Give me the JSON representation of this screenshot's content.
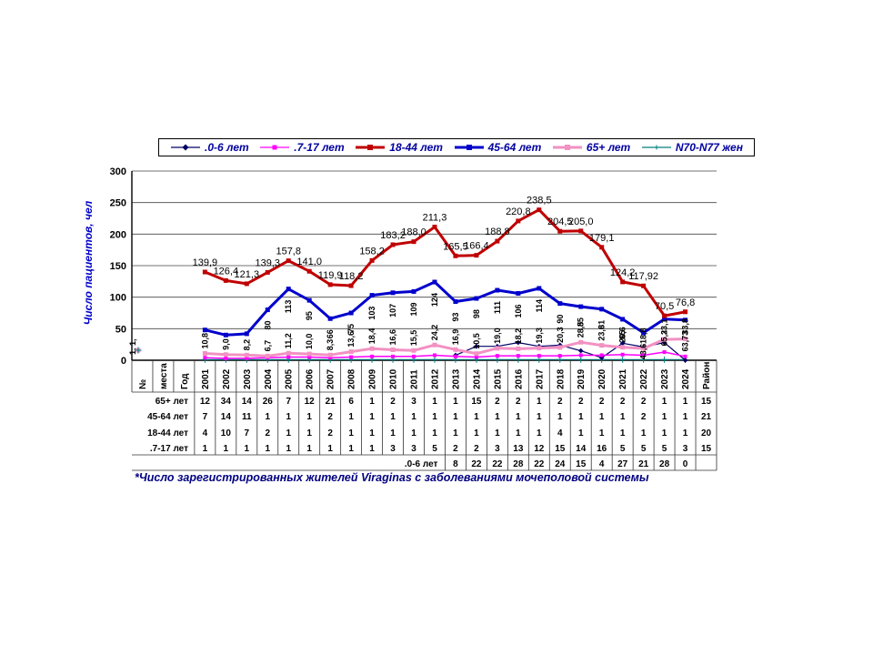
{
  "page": {
    "background": "#ffffff"
  },
  "legend": {
    "items": [
      {
        "label": ".0-6 лет",
        "color": "#000066",
        "marker": "diamond",
        "thick": false
      },
      {
        "label": ".7-17  лет",
        "color": "#ff00ff",
        "marker": "square",
        "thick": false
      },
      {
        "label": "18-44 лет",
        "color": "#c00000",
        "marker": "square",
        "thick": true
      },
      {
        "label": "45-64 лет",
        "color": "#0000cc",
        "marker": "square",
        "thick": true
      },
      {
        "label": "65+ лет",
        "color": "#f291c2",
        "marker": "square",
        "thick": true
      },
      {
        "label": "N70-N77 жен",
        "color": "#008080",
        "marker": "plus",
        "thick": false
      }
    ]
  },
  "chart_data": {
    "type": "line",
    "title": "",
    "ylabel": "Число пациентов, чел",
    "ylim": [
      0,
      300
    ],
    "yticks": [
      0,
      50,
      100,
      150,
      200,
      250,
      300
    ],
    "grid": "horizontal",
    "legend_position": "top",
    "x_prefix_labels": [
      "№",
      "места",
      "Год"
    ],
    "categories": [
      "2001",
      "2002",
      "2003",
      "2004",
      "2005",
      "2006",
      "2007",
      "2008",
      "2009",
      "2010",
      "2011",
      "2012",
      "2013",
      "2014",
      "2015",
      "2016",
      "2017",
      "2018",
      "2019",
      "2020",
      "2021",
      "2022",
      "2023",
      "2024"
    ],
    "x_suffix_label": "Район",
    "left_annotation": "1, 1,",
    "series": [
      {
        "name": "N70-N77 жен",
        "color": "#008080",
        "marker": "plus",
        "width": 1,
        "label_style": "none",
        "values": [
          1,
          1,
          1,
          1,
          1,
          1,
          1,
          1,
          1,
          1,
          1,
          1,
          1,
          1,
          1,
          1,
          1,
          1,
          1,
          1,
          1,
          1,
          1,
          1
        ],
        "labels": []
      },
      {
        "name": ".0-6 лет",
        "color": "#000066",
        "marker": "diamond",
        "width": 1.2,
        "label_style": "none",
        "values": [
          null,
          null,
          null,
          null,
          null,
          null,
          null,
          null,
          null,
          null,
          null,
          null,
          8,
          22,
          22,
          28,
          22,
          24,
          15,
          4,
          27,
          21,
          28,
          0
        ],
        "labels": []
      },
      {
        "name": ".7-17 лет",
        "color": "#ff00ff",
        "marker": "square",
        "width": 1.5,
        "label_style": "none",
        "values": [
          4,
          3,
          3,
          4,
          5,
          5,
          4,
          5,
          6,
          6,
          6,
          8,
          6,
          5,
          7,
          7,
          7,
          7,
          8,
          8,
          9,
          8,
          13,
          6
        ],
        "labels": []
      },
      {
        "name": "65+ лет",
        "color": "#f291c2",
        "marker": "square",
        "width": 3,
        "label_style": "vertical-above",
        "values": [
          10.8,
          9,
          8.2,
          6.7,
          11.2,
          10,
          8.3,
          13.6,
          18.4,
          16.6,
          15.5,
          24.2,
          16.9,
          10.5,
          19,
          18.2,
          19.3,
          20.3,
          28.5,
          23.6,
          20.6,
          18.8,
          33.1,
          33.8
        ],
        "labels": [
          "10,8",
          "9,0",
          "8,2",
          "6,7",
          "11,2",
          "10,0",
          "8,3",
          "13,6",
          "18,4",
          "16,6",
          "15,5",
          "24,2",
          "16,9",
          "10,5",
          "19,0",
          "18,2",
          "19,3",
          "20,3",
          "28,5",
          "23,6",
          "20,6",
          "18,8",
          "33,1",
          "33,8"
        ]
      },
      {
        "name": "45-64 лет",
        "color": "#0000cc",
        "marker": "square",
        "width": 3,
        "label_style": "vertical-below",
        "values": [
          48,
          40,
          42,
          80,
          113,
          95,
          66,
          75,
          103,
          107,
          109,
          124,
          93,
          98,
          111,
          106,
          114,
          90,
          85,
          81,
          65,
          43.6,
          65.2,
          63.73
        ],
        "labels": [
          "",
          "",
          "",
          "80",
          "113",
          "95",
          "66",
          "75",
          "103",
          "107",
          "109",
          "124",
          "93",
          "98",
          "111",
          "106",
          "114",
          "90",
          "85",
          "81",
          "65",
          "43,6",
          "65,2",
          "63,73"
        ]
      },
      {
        "name": "18-44 лет",
        "color": "#c00000",
        "marker": "square",
        "width": 3,
        "label_style": "horizontal",
        "values": [
          139.9,
          126.4,
          121.3,
          139.3,
          157.8,
          141,
          119.9,
          118.2,
          158.2,
          183.2,
          188,
          211.3,
          165.5,
          166.4,
          188.8,
          220.8,
          238.5,
          204.5,
          205,
          179.1,
          124.2,
          117.92,
          70.5,
          76.8
        ],
        "labels": [
          "139,9",
          "126,4",
          "121,3",
          "139,3",
          "157,8",
          "141,0",
          "119,9",
          "118,2",
          "158,2",
          "183,2",
          "188,0",
          "211,3",
          "165,5",
          "166,4",
          "188,8",
          "220,8",
          "238,5",
          "204,5",
          "205,0",
          "179,1",
          "124,2",
          "117,92",
          "70,5",
          "76,8"
        ]
      }
    ]
  },
  "table": {
    "row_labels": [
      "65+ лет",
      "45-64 лет",
      "18-44 лет",
      ".7-17 лет"
    ],
    "rows": [
      [
        12,
        34,
        14,
        26,
        7,
        12,
        21,
        6,
        1,
        2,
        3,
        1,
        1,
        15,
        2,
        2,
        1,
        2,
        2,
        2,
        2,
        2,
        1,
        1,
        15
      ],
      [
        7,
        14,
        11,
        1,
        1,
        1,
        2,
        1,
        1,
        1,
        1,
        1,
        1,
        1,
        1,
        1,
        1,
        1,
        1,
        1,
        1,
        2,
        1,
        1,
        21
      ],
      [
        4,
        10,
        7,
        2,
        1,
        1,
        2,
        1,
        1,
        1,
        1,
        1,
        1,
        1,
        1,
        1,
        1,
        4,
        1,
        1,
        1,
        1,
        1,
        1,
        20
      ],
      [
        1,
        1,
        1,
        1,
        1,
        1,
        1,
        1,
        1,
        3,
        3,
        5,
        2,
        2,
        3,
        13,
        12,
        15,
        14,
        16,
        5,
        5,
        5,
        3,
        15
      ]
    ],
    "extra_row": {
      "label": ".0-6 лет",
      "start_category": "2013",
      "values": [
        8,
        22,
        22,
        28,
        22,
        24,
        15,
        4,
        27,
        21,
        28,
        0
      ]
    }
  },
  "caption": "*Число зарегистрированных жителей Viraginas с заболеваниями мочеполовой системы"
}
